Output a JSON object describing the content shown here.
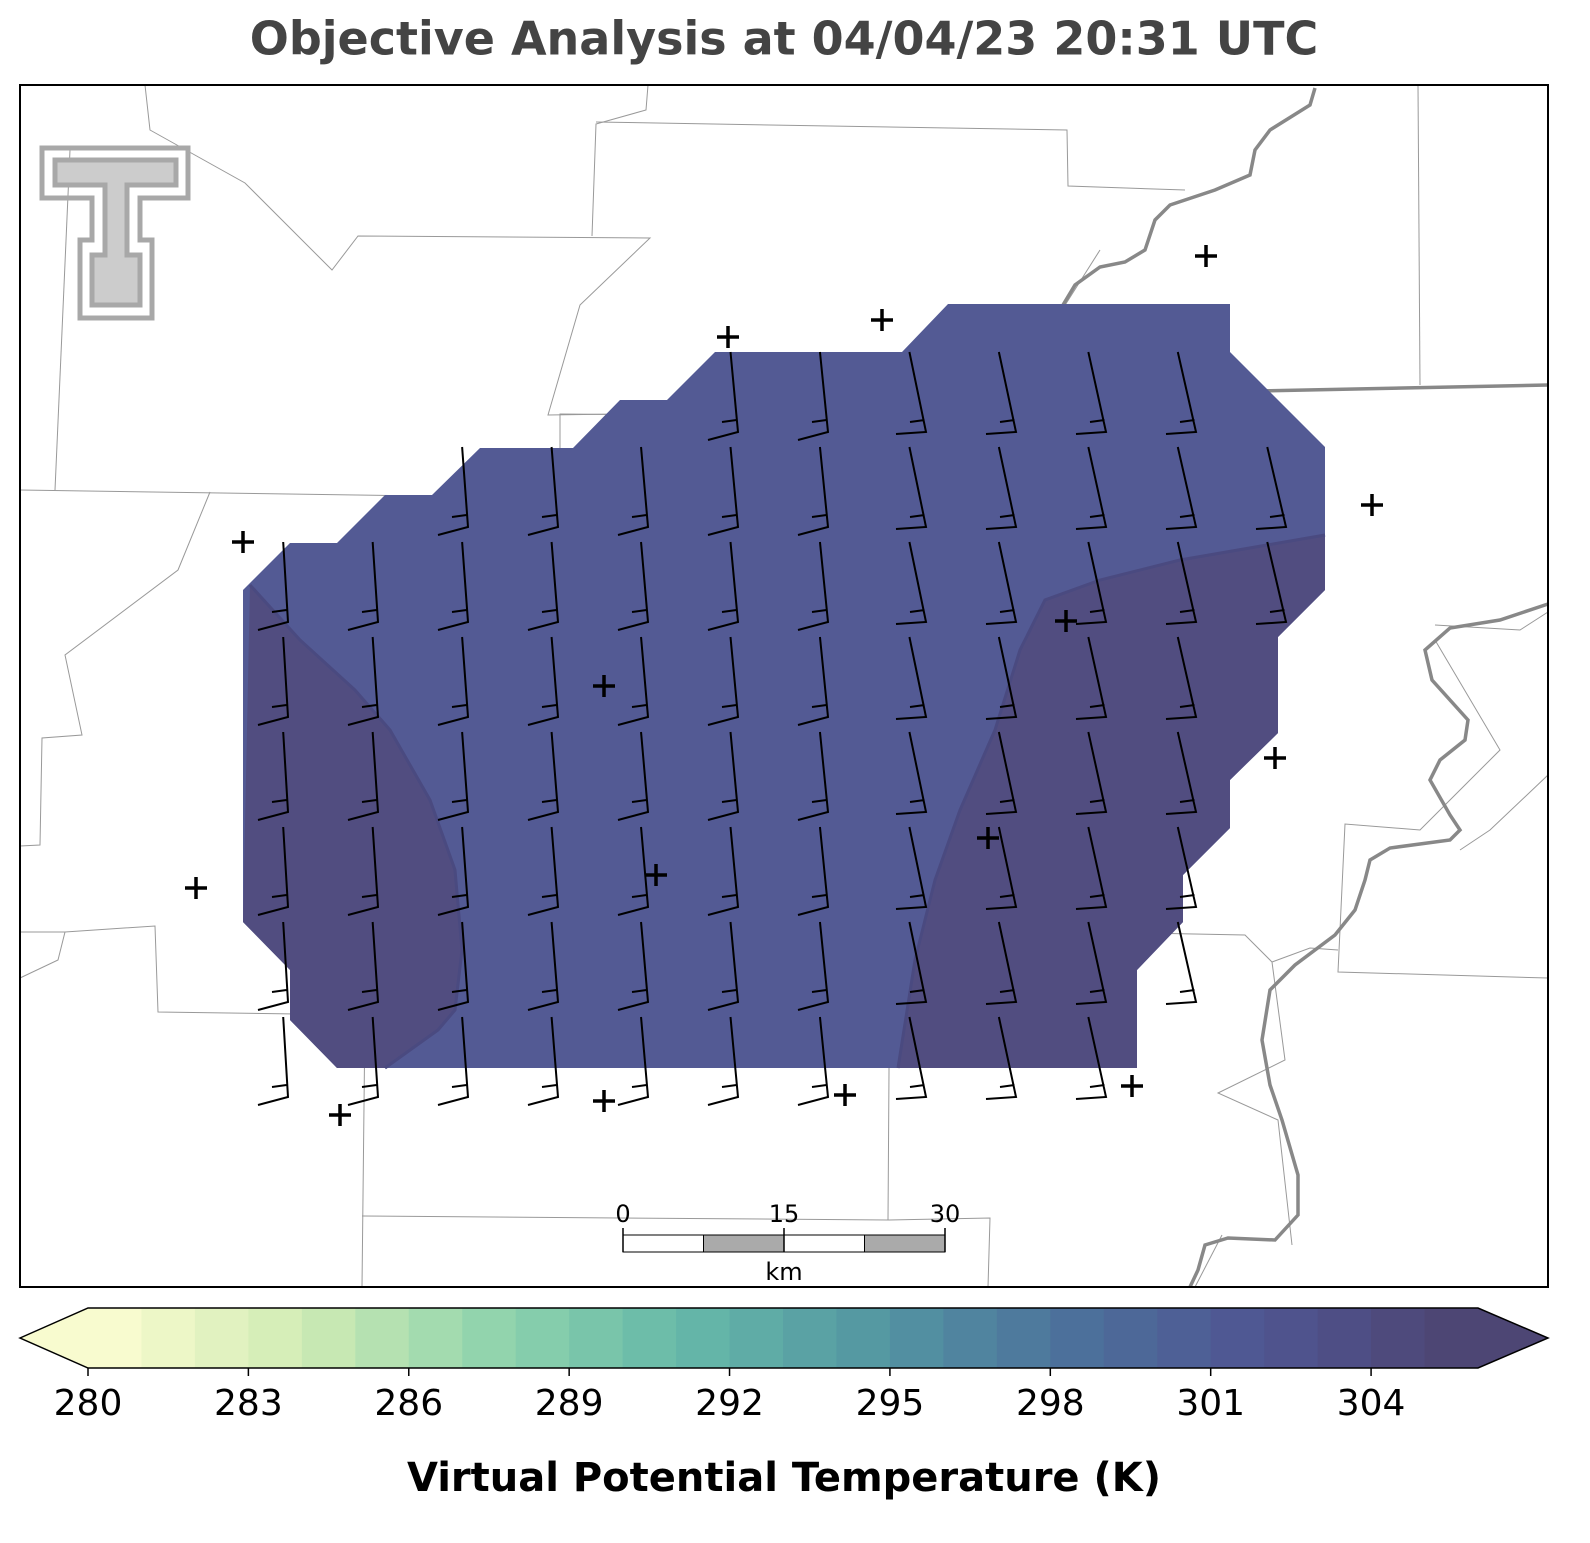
{
  "title": "Objective Analysis at 04/04/23 20:31 UTC",
  "colorbar": {
    "label": "Virtual Potential Temperature (K)",
    "lim": [
      280,
      306
    ],
    "step": 1,
    "ticks": [
      280,
      283,
      286,
      289,
      292,
      295,
      298,
      301,
      304
    ],
    "colors": [
      "#f8fbcf",
      "#cfebb4",
      "#8fd3ad",
      "#65b8a8",
      "#5496a2",
      "#4c719b",
      "#4f5592",
      "#4d4674"
    ]
  },
  "scale_bar": {
    "ticks": [
      0,
      15,
      30
    ],
    "unit": "km"
  }
}
